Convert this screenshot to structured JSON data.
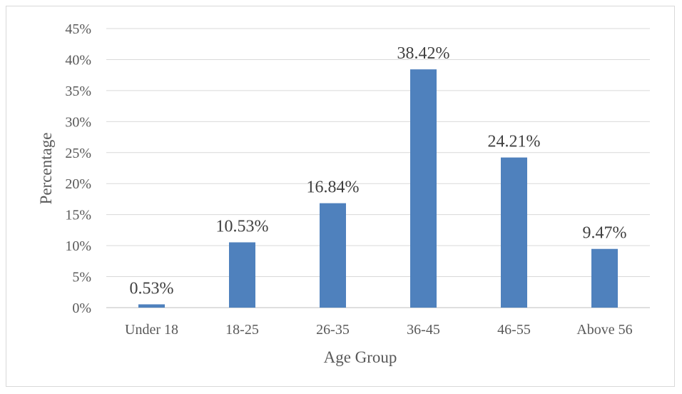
{
  "chart_data": {
    "type": "bar",
    "categories": [
      "Under 18",
      "18-25",
      "26-35",
      "36-45",
      "46-55",
      "Above 56"
    ],
    "values": [
      0.53,
      10.53,
      16.84,
      38.42,
      24.21,
      9.47
    ],
    "data_labels": [
      "0.53%",
      "10.53%",
      "16.84%",
      "38.42%",
      "24.21%",
      "9.47%"
    ],
    "xlabel": "Age Group",
    "ylabel": "Percentage",
    "ylim": [
      0,
      45
    ],
    "y_ticks": [
      0,
      5,
      10,
      15,
      20,
      25,
      30,
      35,
      40,
      45
    ],
    "y_tick_labels": [
      "0%",
      "5%",
      "10%",
      "15%",
      "20%",
      "25%",
      "30%",
      "35%",
      "40%",
      "45%"
    ],
    "grid": true,
    "legend": "none",
    "colors": {
      "bar": "#4f81bd",
      "grid": "#d9d9d9",
      "text": "#595959"
    }
  }
}
